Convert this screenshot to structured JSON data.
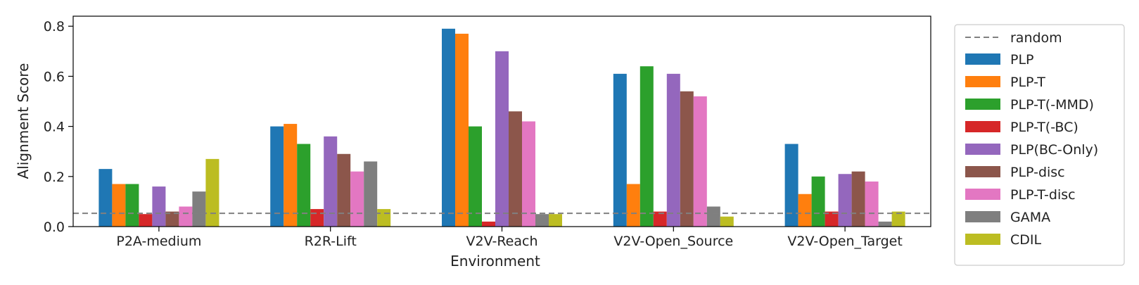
{
  "chart_data": {
    "type": "bar",
    "title": "",
    "xlabel": "Environment",
    "ylabel": "Alignment Score",
    "ylim": [
      0,
      0.84
    ],
    "yticks": [
      "0.0",
      "0.2",
      "0.4",
      "0.6",
      "0.8"
    ],
    "grid": false,
    "legend_position": "right",
    "categories": [
      "P2A-medium",
      "R2R-Lift",
      "V2V-Reach",
      "V2V-Open_Source",
      "V2V-Open_Target"
    ],
    "reference_line": {
      "name": "random",
      "value": 0.053,
      "style": "dashed",
      "color": "#808080"
    },
    "series": [
      {
        "name": "PLP",
        "color": "#1f77b4",
        "values": [
          0.23,
          0.4,
          0.79,
          0.61,
          0.33
        ]
      },
      {
        "name": "PLP-T",
        "color": "#ff7f0e",
        "values": [
          0.17,
          0.41,
          0.77,
          0.17,
          0.13
        ]
      },
      {
        "name": "PLP-T(-MMD)",
        "color": "#2ca02c",
        "values": [
          0.17,
          0.33,
          0.4,
          0.64,
          0.2
        ]
      },
      {
        "name": "PLP-T(-BC)",
        "color": "#d62728",
        "values": [
          0.05,
          0.07,
          0.02,
          0.06,
          0.06
        ]
      },
      {
        "name": "PLP(BC-Only)",
        "color": "#9467bd",
        "values": [
          0.16,
          0.36,
          0.7,
          0.61,
          0.21
        ]
      },
      {
        "name": "PLP-disc",
        "color": "#8c564b",
        "values": [
          0.06,
          0.29,
          0.46,
          0.54,
          0.22
        ]
      },
      {
        "name": "PLP-T-disc",
        "color": "#e377c2",
        "values": [
          0.08,
          0.22,
          0.42,
          0.52,
          0.18
        ]
      },
      {
        "name": "GAMA",
        "color": "#7f7f7f",
        "values": [
          0.14,
          0.26,
          0.05,
          0.08,
          0.02
        ]
      },
      {
        "name": "CDIL",
        "color": "#bcbd22",
        "values": [
          0.27,
          0.07,
          0.05,
          0.04,
          0.06
        ]
      }
    ]
  }
}
